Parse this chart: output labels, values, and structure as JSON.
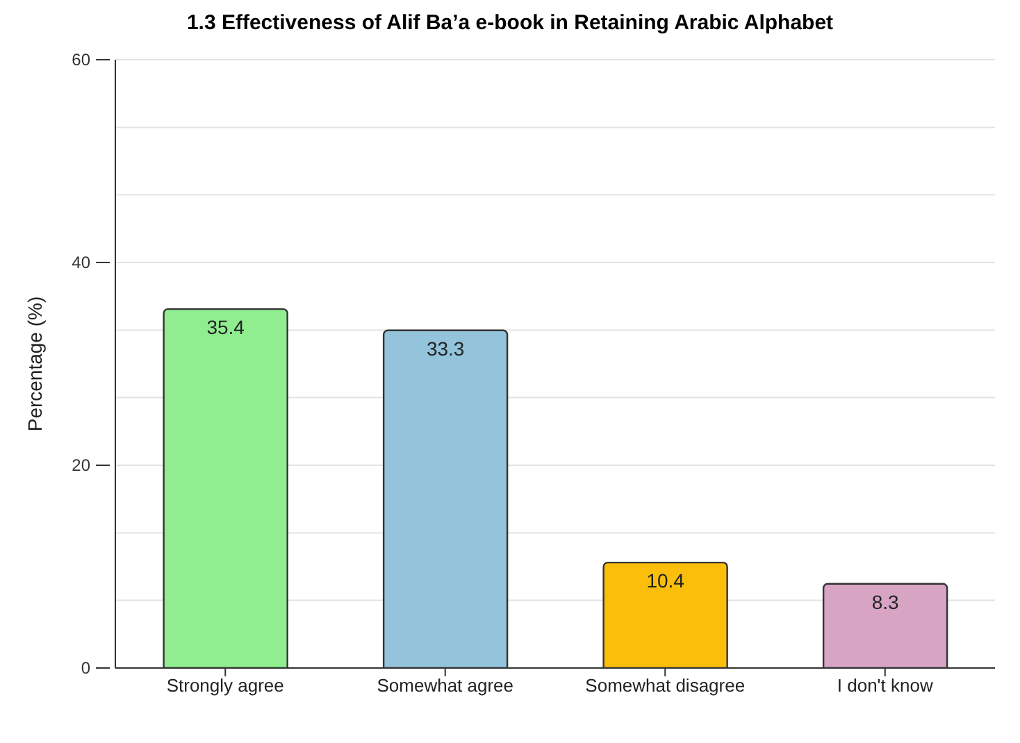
{
  "chart_data": {
    "type": "bar",
    "title": "1.3 Effectiveness of Alif Ba’a e-book in Retaining Arabic Alphabet",
    "ylabel": "Percentage (%)",
    "categories": [
      "Strongly agree",
      "Somewhat agree",
      "Somewhat disagree",
      "I don't know"
    ],
    "values": [
      35.4,
      33.3,
      10.4,
      8.3
    ],
    "colors": [
      "#90ee90",
      "#93c4dc",
      "#fbbf0b",
      "#d8a4c4"
    ],
    "ylim": [
      0,
      60
    ],
    "yticks": [
      0,
      {
        "value": 6.67,
        "label": null
      },
      {
        "value": 13.33,
        "label": null
      },
      20,
      {
        "value": 26.67,
        "label": null
      },
      {
        "value": 33.33,
        "label": null
      },
      40,
      {
        "value": 46.67,
        "label": null
      },
      {
        "value": 53.33,
        "label": null
      },
      60
    ],
    "grid": "y",
    "data_labels": true
  }
}
